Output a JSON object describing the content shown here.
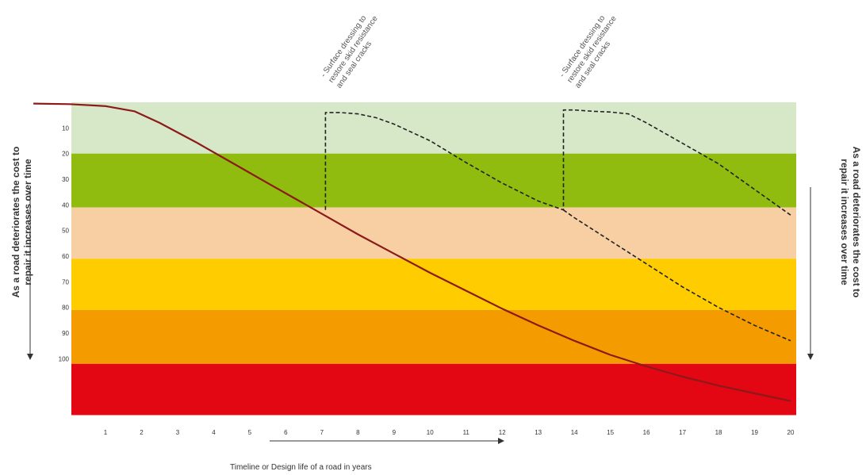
{
  "chart_data": {
    "type": "line",
    "title": "",
    "xlabel": "Timeline or Design life of a road in years",
    "ylabel_left": [
      "As a road deteriorates the cost to",
      "repair it increases over time"
    ],
    "ylabel_right": [
      "As a road deteriorates the cost to",
      "repair it increases over time"
    ],
    "x_ticks": [
      1,
      2,
      3,
      4,
      5,
      6,
      7,
      8,
      9,
      10,
      11,
      12,
      13,
      14,
      15,
      16,
      17,
      18,
      19,
      20
    ],
    "y_ticks": [
      10,
      20,
      30,
      40,
      50,
      60,
      70,
      80,
      90,
      100
    ],
    "xlim": [
      -1,
      20.2
    ],
    "ylim": [
      0,
      120
    ],
    "y_inverted": true,
    "bands": [
      {
        "from": 0,
        "to": 20,
        "color": "#d7e8c8"
      },
      {
        "from": 20,
        "to": 41,
        "color": "#8fbc0f"
      },
      {
        "from": 41,
        "to": 61,
        "color": "#f7cfa2"
      },
      {
        "from": 61,
        "to": 81,
        "color": "#ffcc00"
      },
      {
        "from": 81,
        "to": 102,
        "color": "#f49b00"
      },
      {
        "from": 102,
        "to": 122,
        "color": "#e30613"
      }
    ],
    "series": [
      {
        "style": "solid",
        "color": "#8b1a1a",
        "x": [
          -1,
          0,
          1,
          1.8,
          2.5,
          3.5,
          4.5,
          5.5,
          6.5,
          7,
          8,
          9,
          10,
          11,
          12,
          13,
          14,
          15,
          16,
          17,
          18,
          19,
          20
        ],
        "y": [
          0.5,
          0.7,
          1.5,
          3.5,
          8,
          15.5,
          23.5,
          31.5,
          39.5,
          43.5,
          51.5,
          59,
          66.5,
          73.5,
          80.5,
          87,
          93,
          98.5,
          103,
          107,
          110.5,
          113.5,
          116.5
        ]
      },
      {
        "style": "dashed",
        "color": "#222222",
        "x": [
          7.1,
          7.1,
          7.5,
          8,
          8.5,
          9,
          10,
          11,
          12,
          13,
          13.7,
          13.7,
          14,
          14.5,
          15,
          15.5,
          16,
          17,
          18,
          19,
          20
        ],
        "y": [
          42,
          4,
          4,
          4.5,
          6,
          8.5,
          15,
          23.5,
          31.5,
          38.5,
          42,
          3,
          3,
          3.5,
          3.8,
          4.5,
          8,
          16,
          24,
          34,
          44
        ]
      },
      {
        "style": "dashed",
        "color": "#222222",
        "x": [
          13.7,
          14,
          15,
          16,
          17,
          18,
          19,
          20
        ],
        "y": [
          42,
          45,
          54,
          63,
          72,
          80,
          87,
          93
        ]
      }
    ],
    "annotations": [
      {
        "text": [
          "- Surface dressing to",
          "restore skid resistance",
          "and seal cracks"
        ],
        "x": 7.1
      },
      {
        "text": [
          "- Surface dressing to",
          "restore skid resistance",
          "and seal cracks"
        ],
        "x": 13.7
      }
    ],
    "legend": "none",
    "grid": false
  }
}
